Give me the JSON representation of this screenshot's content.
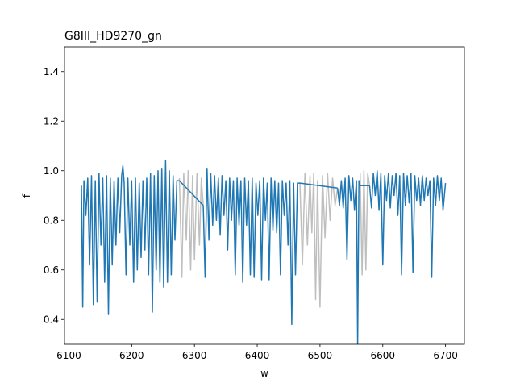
{
  "chart_data": {
    "type": "line",
    "title": "G8III_HD9270_gn",
    "xlabel": "w",
    "ylabel": "f",
    "xlim": [
      6093,
      6730
    ],
    "ylim": [
      0.3,
      1.5
    ],
    "xticks": [
      6100,
      6200,
      6300,
      6400,
      6500,
      6600,
      6700
    ],
    "yticks": [
      0.4,
      0.6,
      0.8,
      1.0,
      1.2,
      1.4
    ],
    "grid": false,
    "colors": {
      "masked": "#bfbfbf",
      "spectrum": "#1f77b4"
    },
    "series": [
      {
        "role": "masked",
        "segments": [
          {
            "x": [
              6276,
              6280,
              6283,
              6287,
              6290,
              6294,
              6297,
              6300,
              6304,
              6308,
              6311,
              6314
            ],
            "y": [
              0.97,
              0.57,
              0.99,
              0.72,
              1.0,
              0.6,
              0.98,
              0.64,
              0.99,
              0.7,
              0.97,
              0.86
            ]
          },
          {
            "x": [
              6468,
              6472,
              6476,
              6480,
              6484,
              6487,
              6490,
              6493,
              6496,
              6500,
              6504,
              6508,
              6512,
              6516,
              6520,
              6524,
              6528
            ],
            "y": [
              0.95,
              0.62,
              0.99,
              0.7,
              0.98,
              0.75,
              0.99,
              0.48,
              0.96,
              0.45,
              0.98,
              0.73,
              0.99,
              0.8,
              0.97,
              0.86,
              0.93
            ]
          },
          {
            "x": [
              6564,
              6567,
              6570,
              6573,
              6576,
              6579
            ],
            "y": [
              0.99,
              0.58,
              1.0,
              0.6,
              0.99,
              0.94
            ]
          }
        ]
      },
      {
        "role": "spectrum",
        "segments": [
          {
            "x": [
              6120,
              6122,
              6124,
              6127,
              6130,
              6133,
              6136,
              6139,
              6142,
              6145,
              6148,
              6151,
              6154,
              6157,
              6160,
              6163,
              6166,
              6169,
              6172,
              6175,
              6178,
              6181,
              6184,
              6186,
              6188,
              6191,
              6194,
              6197,
              6200,
              6203,
              6206,
              6209,
              6212,
              6215,
              6218,
              6221,
              6224,
              6227,
              6230,
              6233,
              6236,
              6239,
              6242,
              6245,
              6248,
              6251,
              6254,
              6257,
              6260,
              6263,
              6266,
              6269,
              6272,
              6276
            ],
            "y": [
              0.94,
              0.45,
              0.96,
              0.82,
              0.97,
              0.62,
              0.98,
              0.46,
              0.96,
              0.47,
              0.99,
              0.7,
              0.97,
              0.55,
              0.98,
              0.42,
              0.97,
              0.62,
              0.96,
              0.7,
              0.97,
              0.75,
              0.98,
              1.02,
              0.95,
              0.58,
              0.97,
              0.7,
              0.96,
              0.55,
              0.97,
              0.6,
              0.95,
              0.65,
              0.96,
              0.68,
              0.97,
              0.58,
              0.99,
              0.43,
              0.98,
              0.6,
              1.0,
              0.55,
              1.01,
              0.53,
              1.04,
              0.55,
              1.0,
              0.58,
              0.98,
              0.72,
              0.96,
              0.96
            ]
          },
          {
            "x": [
              6276,
              6314
            ],
            "y": [
              0.96,
              0.86
            ]
          },
          {
            "x": [
              6314,
              6317,
              6320,
              6323,
              6326,
              6329,
              6332,
              6335,
              6338,
              6341,
              6344,
              6347,
              6350,
              6353,
              6356,
              6359,
              6362,
              6365,
              6368,
              6371,
              6374,
              6377,
              6380,
              6383,
              6386,
              6389,
              6392,
              6395,
              6398,
              6401,
              6404,
              6407,
              6410,
              6413,
              6416,
              6419,
              6422,
              6425,
              6428,
              6431,
              6434,
              6437,
              6440,
              6443,
              6446,
              6449,
              6452,
              6455,
              6458,
              6461,
              6464,
              6468
            ],
            "y": [
              0.86,
              0.57,
              1.01,
              0.72,
              0.99,
              0.78,
              0.98,
              0.8,
              0.97,
              0.74,
              0.98,
              0.82,
              0.96,
              0.68,
              0.97,
              0.8,
              0.96,
              0.58,
              0.97,
              0.78,
              0.96,
              0.55,
              0.97,
              0.78,
              0.96,
              0.58,
              0.97,
              0.57,
              0.95,
              0.82,
              0.96,
              0.56,
              0.97,
              0.8,
              0.95,
              0.56,
              0.97,
              0.76,
              0.96,
              0.75,
              0.95,
              0.58,
              0.96,
              0.82,
              0.95,
              0.7,
              0.96,
              0.38,
              0.95,
              0.58,
              0.95,
              0.95
            ]
          },
          {
            "x": [
              6468,
              6528
            ],
            "y": [
              0.95,
              0.93
            ]
          },
          {
            "x": [
              6528,
              6531,
              6534,
              6537,
              6540,
              6543,
              6546,
              6549,
              6552,
              6555,
              6558,
              6560,
              6562,
              6564
            ],
            "y": [
              0.93,
              0.86,
              0.96,
              0.85,
              0.97,
              0.64,
              0.98,
              0.88,
              0.97,
              0.84,
              0.96,
              0.3,
              0.96,
              0.94
            ]
          },
          {
            "x": [
              6564,
              6579
            ],
            "y": [
              0.94,
              0.94
            ]
          },
          {
            "x": [
              6579,
              6582,
              6585,
              6588,
              6591,
              6594,
              6597,
              6600,
              6603,
              6606,
              6609,
              6612,
              6615,
              6618,
              6621,
              6624,
              6627,
              6630,
              6633,
              6636,
              6639,
              6642,
              6645,
              6648,
              6651,
              6654,
              6657,
              6660,
              6663,
              6666,
              6669,
              6672,
              6675,
              6678,
              6681,
              6684,
              6687,
              6690,
              6693,
              6696,
              6700
            ],
            "y": [
              0.94,
              0.85,
              0.99,
              0.9,
              1.0,
              0.84,
              0.99,
              0.62,
              0.98,
              0.88,
              0.99,
              0.85,
              0.98,
              0.9,
              0.99,
              0.82,
              0.98,
              0.58,
              0.99,
              0.86,
              0.98,
              0.87,
              0.99,
              0.59,
              0.98,
              0.88,
              0.97,
              0.86,
              0.98,
              0.88,
              0.97,
              0.9,
              0.96,
              0.57,
              0.97,
              0.86,
              0.98,
              0.88,
              0.97,
              0.84,
              0.95
            ]
          }
        ]
      }
    ]
  }
}
